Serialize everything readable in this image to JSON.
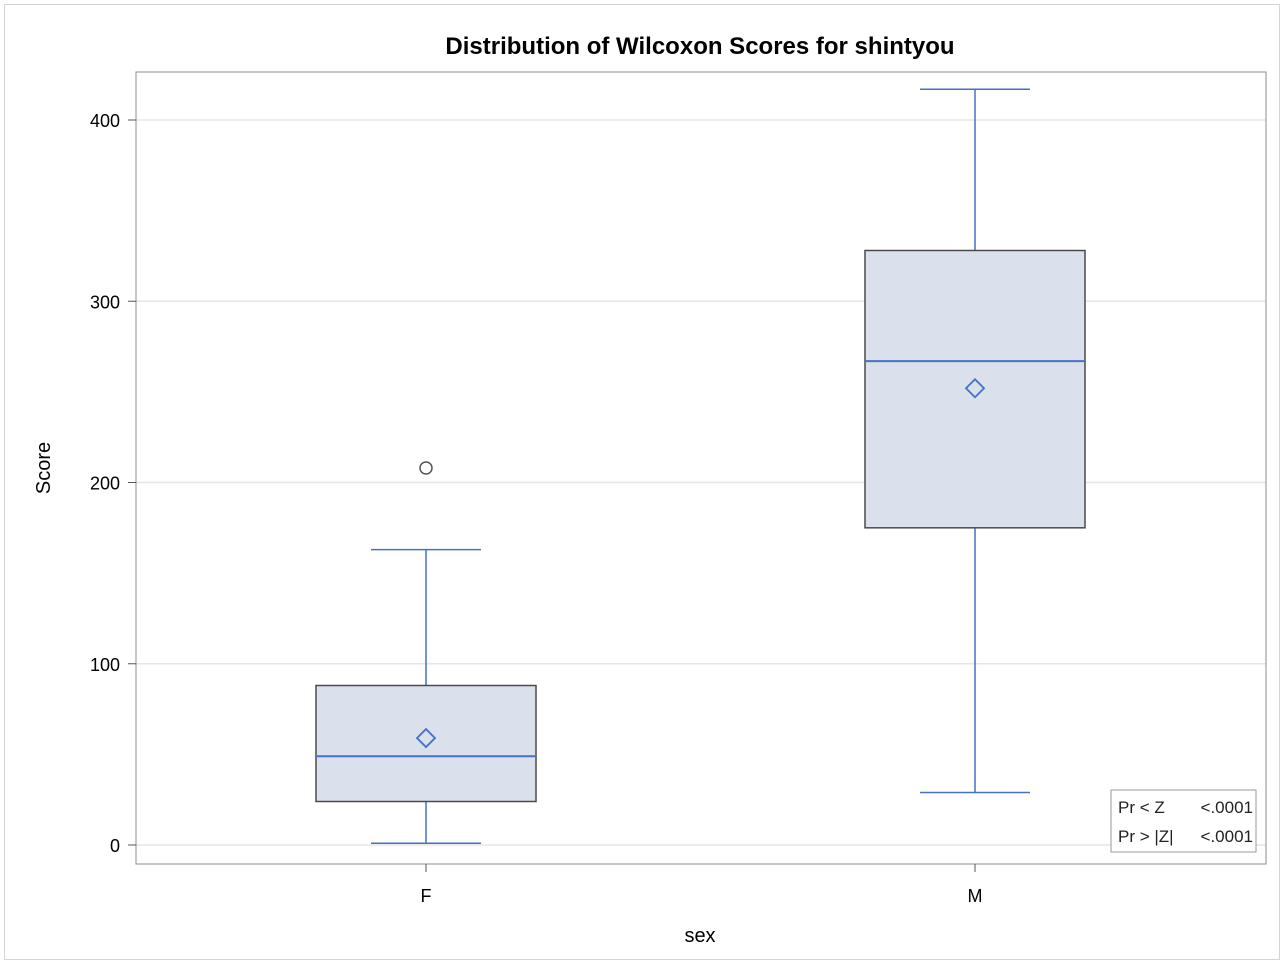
{
  "chart_data": {
    "type": "box",
    "title": "Distribution of Wilcoxon Scores for shintyou",
    "xlabel": "sex",
    "ylabel": "Score",
    "ylim": [
      0,
      400
    ],
    "yticks": [
      0,
      100,
      200,
      300,
      400
    ],
    "grid": "horizontal",
    "categories": [
      "F",
      "M"
    ],
    "boxes": [
      {
        "category": "F",
        "whisker_low": 1,
        "q1": 24,
        "median": 49,
        "mean": 59,
        "q3": 88,
        "whisker_high": 163,
        "outliers": [
          208
        ]
      },
      {
        "category": "M",
        "whisker_low": 29,
        "q1": 175,
        "median": 267,
        "mean": 252,
        "q3": 328,
        "whisker_high": 417,
        "outliers": []
      }
    ],
    "inset": {
      "position": "bottom-right",
      "rows": [
        {
          "label": "Pr < Z",
          "value": "<.0001"
        },
        {
          "label": "Pr > |Z|",
          "value": "<.0001"
        }
      ]
    },
    "colors": {
      "box_fill": "#dbe1ec",
      "box_edge": "#4a4a4a",
      "stat": "#4472c4",
      "grid": "#e6e6e6",
      "outlier": "#555555"
    }
  }
}
